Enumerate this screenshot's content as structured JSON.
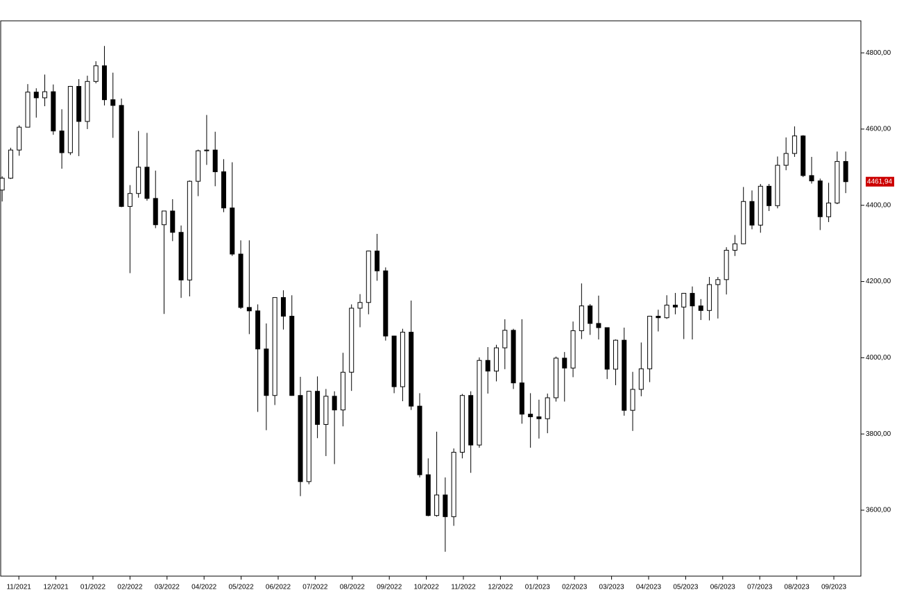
{
  "chart_data": {
    "type": "candlestick",
    "x": [
      -0.45,
      -0.22,
      0.01,
      0.24,
      0.47,
      0.7,
      0.93,
      1.16,
      1.39,
      1.62,
      1.85,
      2.08,
      2.31,
      2.54,
      2.77,
      3,
      3.23,
      3.46,
      3.69,
      3.92,
      4.15,
      4.38,
      4.61,
      4.84,
      5.07,
      5.3,
      5.53,
      5.76,
      5.99,
      6.22,
      6.45,
      6.68,
      6.91,
      7.14,
      7.37,
      7.6,
      7.83,
      8.06,
      8.29,
      8.52,
      8.75,
      8.98,
      9.21,
      9.44,
      9.67,
      9.9,
      10.13,
      10.36,
      10.59,
      10.82,
      11.05,
      11.28,
      11.51,
      11.74,
      11.97,
      12.2,
      12.43,
      12.66,
      12.89,
      13.12,
      13.35,
      13.58,
      13.81,
      14.04,
      14.27,
      14.5,
      14.73,
      14.96,
      15.19,
      15.42,
      15.65,
      15.88,
      16.11,
      16.34,
      16.57,
      16.8,
      17.03,
      17.26,
      17.49,
      17.72,
      17.95,
      18.18,
      18.41,
      18.64,
      18.87,
      19.1,
      19.33,
      19.56,
      19.79,
      20.02,
      20.25,
      20.48,
      20.71,
      20.94,
      21.17,
      21.4,
      21.63,
      21.86,
      22.09,
      22.32
    ],
    "open": [
      4440,
      4471,
      4545,
      4605,
      4697,
      4682,
      4698,
      4595,
      4538,
      4712,
      4620,
      4725,
      4766,
      4677,
      4662,
      4397,
      4431,
      4500,
      4418,
      4349,
      4385,
      4329,
      4204,
      4463,
      4543,
      4545,
      4488,
      4393,
      4272,
      4132,
      4123,
      4023,
      3901,
      4158,
      4109,
      3901,
      3675,
      3912,
      3825,
      3899,
      3863,
      3962,
      4130,
      4145,
      4280,
      4228,
      4057,
      3924,
      4067,
      3873,
      3693,
      3586,
      3640,
      3583,
      3752,
      3901,
      3771,
      3993,
      3965,
      4026,
      4072,
      3934,
      3852,
      3845,
      3840,
      3895,
      3999,
      3973,
      4071,
      4136,
      4090,
      4079,
      3970,
      4046,
      3862,
      3917,
      3971,
      4109,
      4105,
      4138,
      4133,
      4169,
      4136,
      4124,
      4192,
      4205,
      4282,
      4299,
      4410,
      4348,
      4450,
      4399,
      4505,
      4536,
      4582,
      4478,
      4464,
      4370,
      4406,
      4515
    ],
    "high": [
      4476,
      4551,
      4610,
      4718,
      4707,
      4743,
      4717,
      4652,
      4713,
      4731,
      4740,
      4778,
      4818,
      4748,
      4680,
      4453,
      4595,
      4590,
      4491,
      4385,
      4416,
      4347,
      4465,
      4546,
      4637,
      4593,
      4521,
      4513,
      4308,
      4308,
      4140,
      4090,
      4158,
      4177,
      4164,
      3950,
      3913,
      3951,
      3918,
      3912,
      4013,
      4140,
      4167,
      4281,
      4325,
      4237,
      4058,
      4076,
      4150,
      3907,
      3736,
      3806,
      3686,
      3762,
      3905,
      3912,
      4001,
      4028,
      4034,
      4101,
      4076,
      4101,
      3907,
      3890,
      3906,
      4003,
      4015,
      4095,
      4195,
      4141,
      4163,
      4079,
      4048,
      4079,
      3963,
      4040,
      4110,
      4126,
      4164,
      4170,
      4170,
      4187,
      4154,
      4212,
      4212,
      4290,
      4322,
      4448,
      4439,
      4456,
      4456,
      4528,
      4578,
      4607,
      4584,
      4527,
      4470,
      4459,
      4541,
      4541
    ],
    "low": [
      4410,
      4469,
      4530,
      4605,
      4630,
      4660,
      4585,
      4496,
      4532,
      4529,
      4600,
      4720,
      4662,
      4577,
      4395,
      4222,
      4420,
      4412,
      4340,
      4115,
      4306,
      4157,
      4161,
      4424,
      4506,
      4450,
      4382,
      4267,
      4128,
      4062,
      3858,
      3810,
      3876,
      4074,
      3900,
      3637,
      3668,
      3789,
      3742,
      3721,
      3820,
      3913,
      4080,
      4114,
      4202,
      4045,
      3907,
      3886,
      3863,
      3686,
      3584,
      3583,
      3491,
      3559,
      3736,
      3698,
      3764,
      3906,
      3938,
      3970,
      3918,
      3827,
      3764,
      3788,
      3802,
      3885,
      3885,
      3949,
      4049,
      4060,
      4048,
      3944,
      3928,
      3848,
      3808,
      3899,
      3936,
      4069,
      4102,
      4114,
      4049,
      4048,
      4099,
      4098,
      4103,
      4166,
      4267,
      4298,
      4337,
      4328,
      4385,
      4392,
      4492,
      4527,
      4474,
      4457,
      4335,
      4356,
      4403,
      4432
    ],
    "close": [
      4471,
      4545,
      4605,
      4697,
      4682,
      4698,
      4595,
      4538,
      4712,
      4620,
      4725,
      4766,
      4677,
      4662,
      4397,
      4431,
      4500,
      4418,
      4349,
      4385,
      4329,
      4204,
      4463,
      4543,
      4545,
      4488,
      4393,
      4272,
      4132,
      4123,
      4023,
      3901,
      4158,
      4109,
      3901,
      3675,
      3912,
      3825,
      3899,
      3863,
      3962,
      4130,
      4145,
      4280,
      4228,
      4057,
      3924,
      4067,
      3873,
      3693,
      3586,
      3640,
      3583,
      3752,
      3901,
      3771,
      3993,
      3965,
      4026,
      4072,
      3934,
      3852,
      3845,
      3840,
      3895,
      3999,
      3973,
      4071,
      4136,
      4090,
      4079,
      3970,
      4046,
      3862,
      3917,
      3971,
      4109,
      4105,
      4138,
      4133,
      4169,
      4136,
      4124,
      4192,
      4205,
      4282,
      4299,
      4410,
      4348,
      4450,
      4399,
      4505,
      4536,
      4582,
      4478,
      4464,
      4370,
      4406,
      4515,
      4461.94
    ],
    "up_color": "#ffffff",
    "down_color": "#000000",
    "xlim": [
      -0.49,
      22.73
    ],
    "xticks": [
      {
        "value": 0,
        "label": "11/2021"
      },
      {
        "value": 1,
        "label": "12/2021"
      },
      {
        "value": 2,
        "label": "01/2022"
      },
      {
        "value": 3,
        "label": "02/2022"
      },
      {
        "value": 4,
        "label": "03/2022"
      },
      {
        "value": 5,
        "label": "04/2022"
      },
      {
        "value": 6,
        "label": "05/2022"
      },
      {
        "value": 7,
        "label": "06/2022"
      },
      {
        "value": 8,
        "label": "07/2022"
      },
      {
        "value": 9,
        "label": "08/2022"
      },
      {
        "value": 10,
        "label": "09/2022"
      },
      {
        "value": 11,
        "label": "10/2022"
      },
      {
        "value": 12,
        "label": "11/2022"
      },
      {
        "value": 13,
        "label": "12/2022"
      },
      {
        "value": 14,
        "label": "01/2023"
      },
      {
        "value": 15,
        "label": "02/2023"
      },
      {
        "value": 16,
        "label": "03/2023"
      },
      {
        "value": 17,
        "label": "04/2023"
      },
      {
        "value": 18,
        "label": "05/2023"
      },
      {
        "value": 19,
        "label": "06/2023"
      },
      {
        "value": 20,
        "label": "07/2023"
      },
      {
        "value": 21,
        "label": "08/2023"
      },
      {
        "value": 22,
        "label": "09/2023"
      }
    ],
    "ylim": [
      3427,
      4884
    ],
    "yticks": [
      {
        "value": 3600,
        "label": "3600,00"
      },
      {
        "value": 3800,
        "label": "3800,00"
      },
      {
        "value": 4000,
        "label": "4000,00"
      },
      {
        "value": 4200,
        "label": "4200,00"
      },
      {
        "value": 4400,
        "label": "4400,00"
      },
      {
        "value": 4600,
        "label": "4600,00"
      },
      {
        "value": 4800,
        "label": "4800,00"
      }
    ],
    "last_label": {
      "value": 4461.94,
      "label": "4461,94"
    },
    "last_color": "#cc0000"
  }
}
